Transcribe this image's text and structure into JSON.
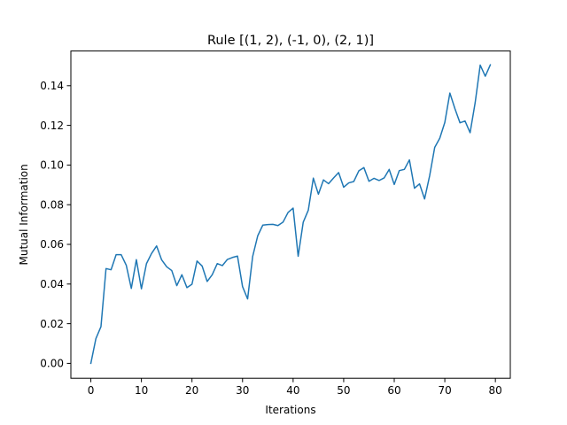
{
  "chart_data": {
    "type": "line",
    "title": "Rule [(1, 2), (-1, 0), (2, 1)]",
    "xlabel": "Iterations",
    "ylabel": "Mutual Information",
    "xlim": [
      -3.95,
      82.95
    ],
    "ylim": [
      -0.0075,
      0.1575
    ],
    "xticks": [
      0,
      10,
      20,
      30,
      40,
      50,
      60,
      70,
      80
    ],
    "xtick_labels": [
      "0",
      "10",
      "20",
      "30",
      "40",
      "50",
      "60",
      "70",
      "80"
    ],
    "yticks": [
      0.0,
      0.02,
      0.04,
      0.06,
      0.08,
      0.1,
      0.12,
      0.14
    ],
    "ytick_labels": [
      "0.00",
      "0.02",
      "0.04",
      "0.06",
      "0.08",
      "0.10",
      "0.12",
      "0.14"
    ],
    "grid": false,
    "series": [
      {
        "color": "#1f77b4",
        "x": [
          0,
          1,
          2,
          3,
          4,
          5,
          6,
          7,
          8,
          9,
          10,
          11,
          12,
          13,
          14,
          15,
          16,
          17,
          18,
          19,
          20,
          21,
          22,
          23,
          24,
          25,
          26,
          27,
          28,
          29,
          30,
          31,
          32,
          33,
          34,
          35,
          36,
          37,
          38,
          39,
          40,
          41,
          42,
          43,
          44,
          45,
          46,
          47,
          48,
          49,
          50,
          51,
          52,
          53,
          54,
          55,
          56,
          57,
          58,
          59,
          60,
          61,
          62,
          63,
          64,
          65,
          66,
          67,
          68,
          69,
          70,
          71,
          72,
          73,
          74,
          75,
          76,
          77,
          78,
          79
        ],
        "y": [
          0.0,
          0.0125,
          0.0185,
          0.0478,
          0.0472,
          0.0548,
          0.0548,
          0.0495,
          0.0378,
          0.0523,
          0.0376,
          0.0503,
          0.0554,
          0.0592,
          0.0522,
          0.0487,
          0.0468,
          0.0392,
          0.0447,
          0.0382,
          0.0399,
          0.0516,
          0.0491,
          0.0413,
          0.0447,
          0.0503,
          0.0493,
          0.0524,
          0.0534,
          0.0541,
          0.0387,
          0.0325,
          0.0539,
          0.0643,
          0.0697,
          0.07,
          0.0701,
          0.0695,
          0.0712,
          0.0761,
          0.0783,
          0.054,
          0.0712,
          0.0772,
          0.0934,
          0.0853,
          0.0925,
          0.0906,
          0.0935,
          0.0962,
          0.0888,
          0.091,
          0.0917,
          0.0971,
          0.0987,
          0.0918,
          0.0933,
          0.0922,
          0.0935,
          0.0978,
          0.0902,
          0.0972,
          0.0978,
          0.1026,
          0.0883,
          0.0905,
          0.0829,
          0.0946,
          0.1089,
          0.1135,
          0.1215,
          0.1363,
          0.1284,
          0.1213,
          0.1222,
          0.1163,
          0.1314,
          0.1504,
          0.1448,
          0.1505
        ]
      }
    ]
  }
}
